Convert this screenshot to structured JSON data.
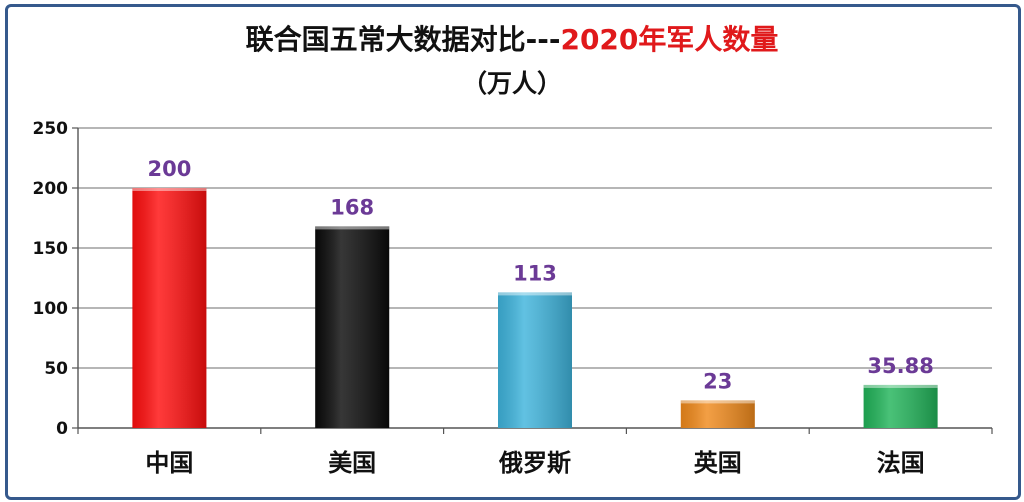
{
  "chart_data": {
    "type": "bar",
    "title_main": "联合国五常大数据对比---",
    "title_accent": "2020年军人数量",
    "subtitle": "（万人）",
    "xlabel": "",
    "ylabel": "",
    "categories": [
      "中国",
      "美国",
      "俄罗斯",
      "英国",
      "法国"
    ],
    "values": [
      200,
      168,
      113,
      23,
      35.88
    ],
    "value_labels": [
      "200",
      "168",
      "113",
      "23",
      "35.88"
    ],
    "ylim": [
      0,
      250
    ],
    "yticks": [
      0,
      50,
      100,
      150,
      200,
      250
    ],
    "grid": true,
    "legend": "none",
    "bar_colors": [
      "#ff0f0f",
      "#0b0b0b",
      "#3fb4dc",
      "#f08a1c",
      "#22b45a"
    ],
    "label_color": "#6b3a96",
    "title_accent_color": "#e0191b",
    "frame_color": "#35598c"
  }
}
